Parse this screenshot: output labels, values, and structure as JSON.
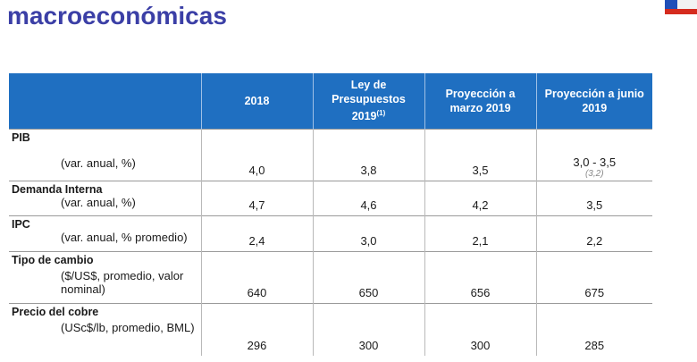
{
  "title": {
    "line2": "macroeconómicas"
  },
  "table": {
    "headers": {
      "col_2018": "2018",
      "col_ley_a": "Ley de",
      "col_ley_b": "Presupuestos",
      "col_ley_c": "2019",
      "col_ley_sup": "(1)",
      "col_marzo_a": "Proyección a",
      "col_marzo_b": "marzo 2019",
      "col_junio_a": "Proyección a junio",
      "col_junio_b": "2019"
    },
    "rows": [
      {
        "category": "PIB",
        "sub": "(var. anual, %)",
        "v2018": "4,0",
        "ley": "3,8",
        "marzo": "3,5",
        "junio": "3,0 - 3,5",
        "junio_note": "(3,2)"
      },
      {
        "category": "Demanda Interna",
        "sub": "(var. anual, %)",
        "v2018": "4,7",
        "ley": "4,6",
        "marzo": "4,2",
        "junio": "3,5"
      },
      {
        "category": "IPC",
        "sub": "(var. anual, % promedio)",
        "v2018": "2,4",
        "ley": "3,0",
        "marzo": "2,1",
        "junio": "2,2"
      },
      {
        "category": "Tipo de cambio",
        "sub": "($/US$, promedio, valor nominal)",
        "v2018": "640",
        "ley": "650",
        "marzo": "656",
        "junio": "675"
      },
      {
        "category": "Precio del cobre",
        "sub": "(USc$/lb, promedio, BML)",
        "v2018": "296",
        "ley": "300",
        "marzo": "300",
        "junio": "285"
      }
    ]
  },
  "colors": {
    "title": "#3b3fa6",
    "header_bg": "#1f6fc1",
    "flag_blue": "#1f4fb8",
    "flag_red": "#d52b1e"
  }
}
